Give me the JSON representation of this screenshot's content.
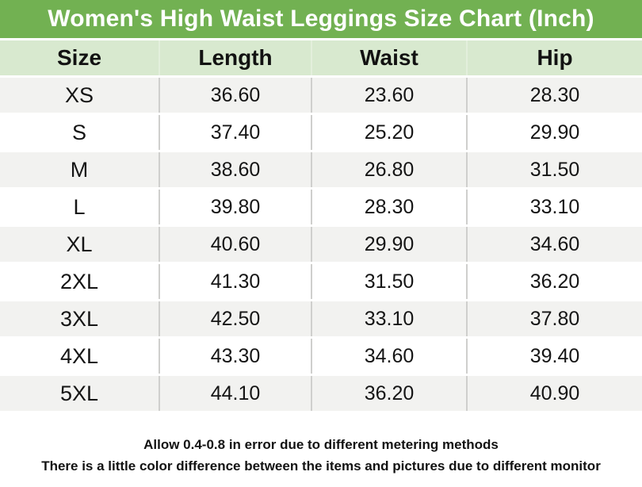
{
  "title": "Women's High Waist Leggings Size Chart (Inch)",
  "table": {
    "headers": [
      "Size",
      "Length",
      "Waist",
      "Hip"
    ],
    "rows": [
      [
        "XS",
        "36.60",
        "23.60",
        "28.30"
      ],
      [
        "S",
        "37.40",
        "25.20",
        "29.90"
      ],
      [
        "M",
        "38.60",
        "26.80",
        "31.50"
      ],
      [
        "L",
        "39.80",
        "28.30",
        "33.10"
      ],
      [
        "XL",
        "40.60",
        "29.90",
        "34.60"
      ],
      [
        "2XL",
        "41.30",
        "31.50",
        "36.20"
      ],
      [
        "3XL",
        "42.50",
        "33.10",
        "37.80"
      ],
      [
        "4XL",
        "43.30",
        "34.60",
        "39.40"
      ],
      [
        "5XL",
        "44.10",
        "36.20",
        "40.90"
      ]
    ]
  },
  "footer": {
    "line1": "Allow 0.4-0.8 in error due to different metering methods",
    "line2": "There is a little color difference between the items and pictures due to different monitor"
  },
  "colors": {
    "title_bar_green": "#72b152",
    "header_row_green": "#d8e9cf",
    "row_alt_gray": "#f2f2f0",
    "row_white": "#ffffff",
    "column_divider": "#cfcfcd",
    "title_text": "#ffffff",
    "body_text": "#151515"
  },
  "chart_data": {
    "type": "table",
    "title": "Women's High Waist Leggings Size Chart (Inch)",
    "units": "inch",
    "columns": [
      "Size",
      "Length",
      "Waist",
      "Hip"
    ],
    "rows": [
      {
        "size": "XS",
        "length": 36.6,
        "waist": 23.6,
        "hip": 28.3
      },
      {
        "size": "S",
        "length": 37.4,
        "waist": 25.2,
        "hip": 29.9
      },
      {
        "size": "M",
        "length": 38.6,
        "waist": 26.8,
        "hip": 31.5
      },
      {
        "size": "L",
        "length": 39.8,
        "waist": 28.3,
        "hip": 33.1
      },
      {
        "size": "XL",
        "length": 40.6,
        "waist": 29.9,
        "hip": 34.6
      },
      {
        "size": "2XL",
        "length": 41.3,
        "waist": 31.5,
        "hip": 36.2
      },
      {
        "size": "3XL",
        "length": 42.5,
        "waist": 33.1,
        "hip": 37.8
      },
      {
        "size": "4XL",
        "length": 43.3,
        "waist": 34.6,
        "hip": 39.4
      },
      {
        "size": "5XL",
        "length": 44.1,
        "waist": 36.2,
        "hip": 40.9
      }
    ],
    "notes": [
      "Allow 0.4-0.8 in error due to different metering methods",
      "There is a little color difference between the items and pictures due to different monitor"
    ]
  }
}
